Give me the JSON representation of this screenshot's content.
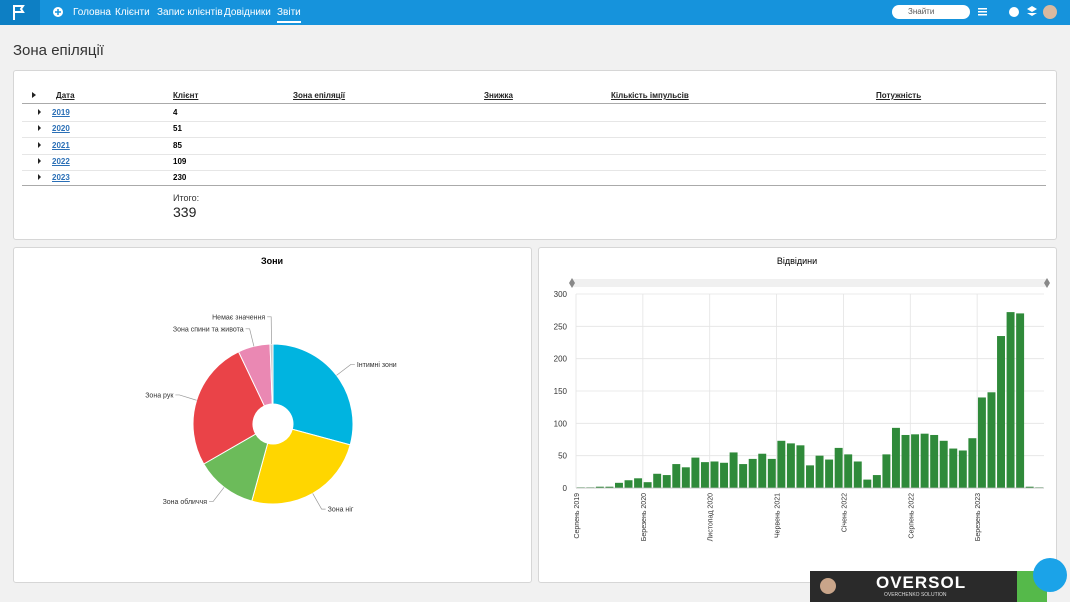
{
  "nav": {
    "items": [
      "Головна",
      "Клієнти",
      "Запис клієнтів",
      "Довідники",
      "Звіти"
    ],
    "search": "Знайти"
  },
  "page_title": "Зона епіляції",
  "table": {
    "headers": [
      "Дата",
      "Клієнт",
      "Зона епіляції",
      "Знижка",
      "Кількість імпульсів",
      "Потужність"
    ],
    "rows": [
      [
        "2019",
        "4"
      ],
      [
        "2020",
        "51"
      ],
      [
        "2021",
        "85"
      ],
      [
        "2022",
        "109"
      ],
      [
        "2023",
        "230"
      ]
    ],
    "total_label": "Итого:",
    "total": "339"
  },
  "banner": {
    "title": "OVERSOL",
    "subtitle": "OVERCHENKO SOLUTION"
  },
  "chart_data": [
    {
      "type": "pie",
      "title": "Зони",
      "donut": true,
      "categories": [
        "Інтимні зони",
        "Зона ніг",
        "Зона обличчя",
        "Зона рук",
        "Зона спини та живота",
        "Немає значення"
      ],
      "values": [
        99,
        85,
        42,
        89,
        22,
        2
      ],
      "colors": [
        "#00b4e0",
        "#ffd600",
        "#6cbb5a",
        "#ea4348",
        "#ea88b3",
        "#c8c8c8"
      ]
    },
    {
      "type": "bar",
      "title": "Відвідини",
      "color": "#2f8a3a",
      "grid": true,
      "categories": [
        "Серпень 2019",
        null,
        null,
        null,
        null,
        null,
        null,
        "Березень 2020",
        null,
        null,
        null,
        null,
        null,
        null,
        "Листопад 2020",
        null,
        null,
        null,
        null,
        null,
        null,
        "Червень 2021",
        null,
        null,
        null,
        null,
        null,
        null,
        "Січень 2022",
        null,
        null,
        null,
        null,
        null,
        null,
        "Серпень 2022",
        null,
        null,
        null,
        null,
        null,
        null,
        "Березень 2023",
        null,
        null,
        null,
        null,
        null,
        null
      ],
      "values": [
        1,
        1,
        2,
        2,
        8,
        12,
        15,
        9,
        22,
        20,
        37,
        32,
        47,
        40,
        41,
        39,
        55,
        37,
        45,
        53,
        45,
        73,
        69,
        66,
        35,
        50,
        44,
        62,
        52,
        41,
        13,
        20,
        52,
        93,
        82,
        83,
        84,
        82,
        73,
        61,
        58,
        77,
        140,
        148,
        235,
        272,
        270,
        2,
        1
      ],
      "ylim": [
        0,
        300
      ],
      "yticks": [
        0,
        50,
        100,
        150,
        200,
        250,
        300
      ]
    }
  ]
}
